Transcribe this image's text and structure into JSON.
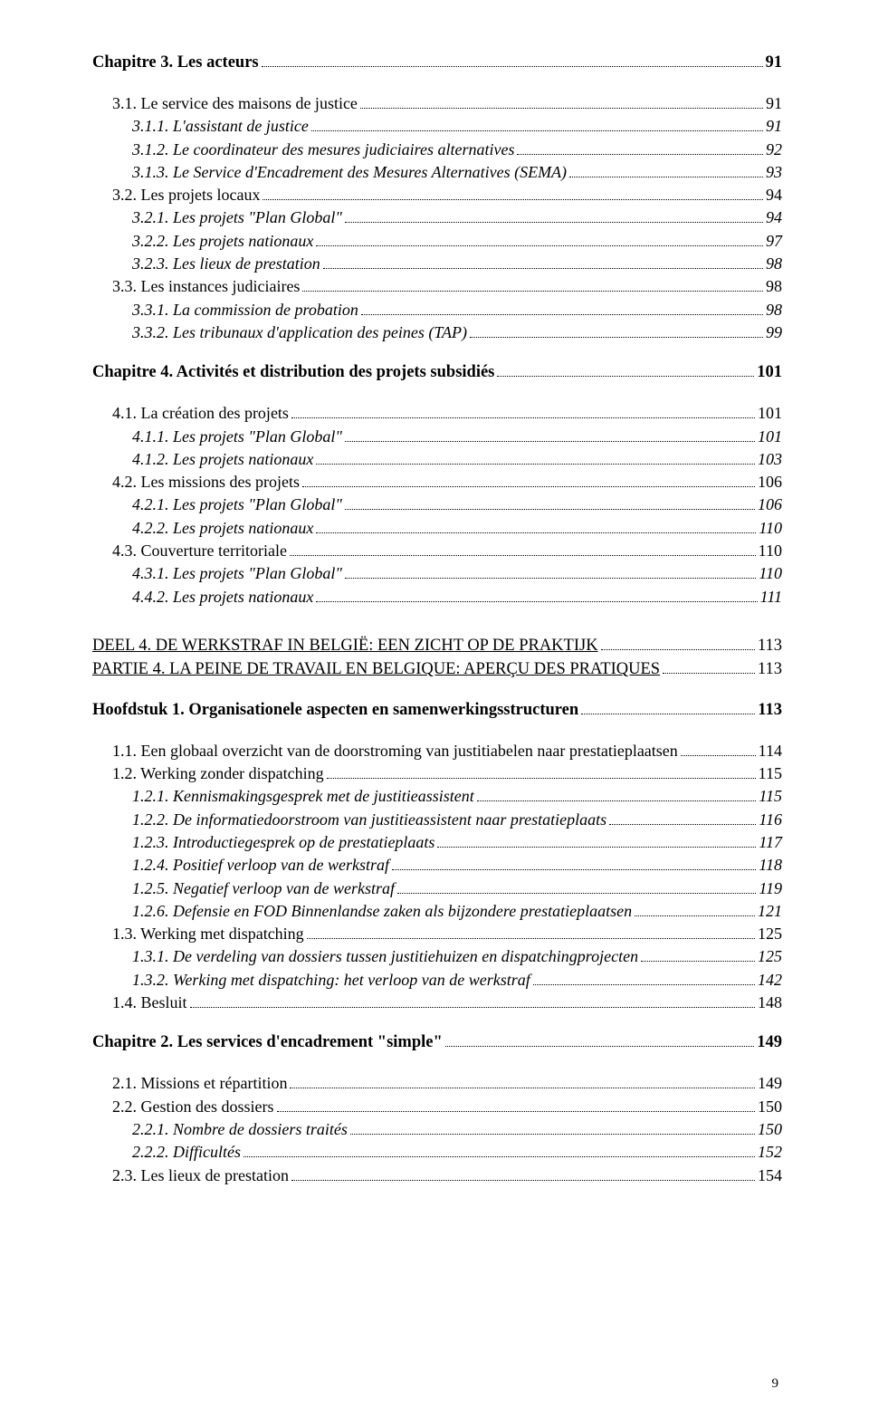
{
  "page_number": "9",
  "entries": [
    {
      "label": "Chapitre 3. Les acteurs",
      "page": "91",
      "cls": "lvl0"
    },
    {
      "gap": "sm"
    },
    {
      "label": "3.1. Le service des maisons de justice",
      "page": "91",
      "cls": "lvl1"
    },
    {
      "label": "3.1.1. L'assistant de justice",
      "page": "91",
      "cls": "lvl2"
    },
    {
      "label": "3.1.2. Le coordinateur des mesures judiciaires alternatives",
      "page": "92",
      "cls": "lvl2"
    },
    {
      "label": "3.1.3. Le Service d'Encadrement des Mesures Alternatives (SEMA)",
      "page": "93",
      "cls": "lvl2"
    },
    {
      "label": "3.2. Les projets locaux",
      "page": "94",
      "cls": "lvl1"
    },
    {
      "label": "3.2.1. Les projets \"Plan Global\"",
      "page": "94",
      "cls": "lvl2"
    },
    {
      "label": "3.2.2. Les projets nationaux",
      "page": "97",
      "cls": "lvl2"
    },
    {
      "label": "3.2.3. Les lieux de prestation",
      "page": "98",
      "cls": "lvl2"
    },
    {
      "label": "3.3. Les instances judiciaires",
      "page": "98",
      "cls": "lvl1"
    },
    {
      "label": "3.3.1. La commission de probation",
      "page": "98",
      "cls": "lvl2"
    },
    {
      "label": "3.3.2. Les tribunaux d'application des peines (TAP)",
      "page": "99",
      "cls": "lvl2"
    },
    {
      "gap": "sm"
    },
    {
      "label": "Chapitre 4. Activités et distribution des projets subsidiés",
      "page": "101",
      "cls": "lvl0"
    },
    {
      "gap": "sm"
    },
    {
      "label": "4.1. La création des projets",
      "page": "101",
      "cls": "lvl1"
    },
    {
      "label": "4.1.1. Les projets \"Plan Global\"",
      "page": "101",
      "cls": "lvl2"
    },
    {
      "label": "4.1.2. Les projets nationaux",
      "page": "103",
      "cls": "lvl2"
    },
    {
      "label": "4.2. Les missions des projets",
      "page": "106",
      "cls": "lvl1"
    },
    {
      "label": "4.2.1. Les projets \"Plan Global\"",
      "page": "106",
      "cls": "lvl2"
    },
    {
      "label": "4.2.2. Les projets nationaux",
      "page": "110",
      "cls": "lvl2"
    },
    {
      "label": "4.3. Couverture territoriale",
      "page": "110",
      "cls": "lvl1"
    },
    {
      "label": "4.3.1. Les projets \"Plan Global\"",
      "page": "110",
      "cls": "lvl2"
    },
    {
      "label": "4.4.2. Les projets nationaux",
      "page": "111",
      "cls": "lvl2"
    },
    {
      "gap": "lg"
    },
    {
      "label": "DEEL 4. DE WERKSTRAF IN BELGIË: EEN ZICHT OP DE PRAKTIJK",
      "page": "113",
      "cls": "lvl0nb",
      "underline": true
    },
    {
      "label": "PARTIE 4. LA PEINE DE TRAVAIL EN BELGIQUE: APERÇU DES PRATIQUES",
      "page": "113",
      "cls": "lvl0nb",
      "underline": true
    },
    {
      "gap": "sm"
    },
    {
      "label": "Hoofdstuk 1. Organisationele aspecten en samenwerkingsstructuren",
      "page": "113",
      "cls": "lvl0"
    },
    {
      "gap": "sm"
    },
    {
      "label": "1.1. Een globaal overzicht van de doorstroming van justitiabelen naar prestatieplaatsen",
      "page": "114",
      "cls": "lvl1"
    },
    {
      "label": "1.2. Werking zonder dispatching",
      "page": "115",
      "cls": "lvl1"
    },
    {
      "label": "1.2.1. Kennismakingsgesprek met de justitieassistent",
      "page": "115",
      "cls": "lvl2"
    },
    {
      "label": "1.2.2. De informatiedoorstroom van justitieassistent naar prestatieplaats",
      "page": "116",
      "cls": "lvl2"
    },
    {
      "label": "1.2.3. Introductiegesprek op de prestatieplaats",
      "page": "117",
      "cls": "lvl2"
    },
    {
      "label": "1.2.4. Positief verloop van de werkstraf",
      "page": "118",
      "cls": "lvl2"
    },
    {
      "label": "1.2.5. Negatief verloop van de werkstraf",
      "page": "119",
      "cls": "lvl2"
    },
    {
      "label": "1.2.6. Defensie en FOD Binnenlandse zaken als bijzondere prestatieplaatsen",
      "page": "121",
      "cls": "lvl2"
    },
    {
      "label": "1.3. Werking met dispatching",
      "page": "125",
      "cls": "lvl1"
    },
    {
      "label": "1.3.1. De verdeling van dossiers tussen justitiehuizen en dispatchingprojecten",
      "page": "125",
      "cls": "lvl2"
    },
    {
      "label": "1.3.2. Werking met dispatching: het verloop van de werkstraf",
      "page": "142",
      "cls": "lvl2"
    },
    {
      "label": "1.4. Besluit",
      "page": "148",
      "cls": "lvl1"
    },
    {
      "gap": "sm"
    },
    {
      "label": "Chapitre 2. Les services d'encadrement \"simple\"",
      "page": "149",
      "cls": "lvl0"
    },
    {
      "gap": "sm"
    },
    {
      "label": "2.1. Missions et répartition",
      "page": "149",
      "cls": "lvl1"
    },
    {
      "label": "2.2. Gestion des dossiers",
      "page": "150",
      "cls": "lvl1"
    },
    {
      "label": "2.2.1. Nombre de dossiers traités",
      "page": "150",
      "cls": "lvl2"
    },
    {
      "label": "2.2.2. Difficultés",
      "page": "152",
      "cls": "lvl2"
    },
    {
      "label": "2.3. Les lieux de prestation",
      "page": "154",
      "cls": "lvl1"
    }
  ]
}
